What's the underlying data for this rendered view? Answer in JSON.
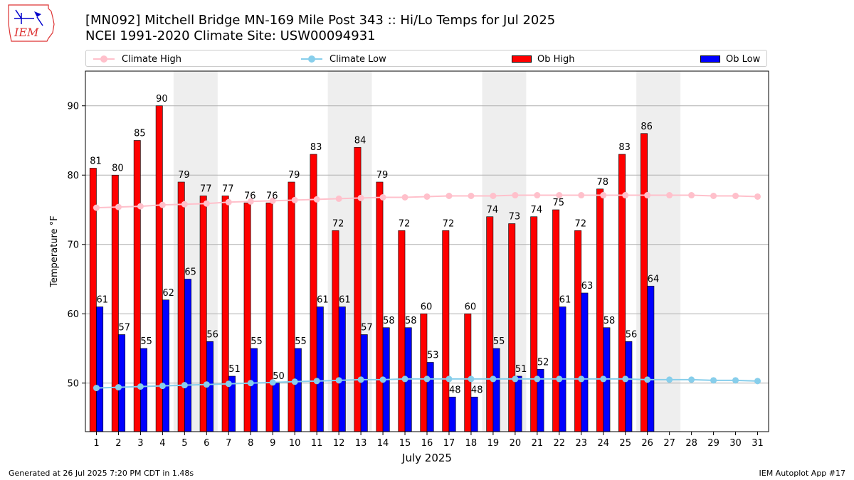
{
  "header": {
    "logo_text": "IEM",
    "title_line1": "[MN092] Mitchell Bridge MN-169 Mile Post 343 :: Hi/Lo Temps for Jul 2025",
    "title_line2": "NCEI 1991-2020 Climate Site: USW00094931"
  },
  "legend": {
    "climate_high": "Climate High",
    "climate_low": "Climate Low",
    "ob_high": "Ob High",
    "ob_low": "Ob Low"
  },
  "footer": {
    "left": "Generated at 26 Jul 2025 7:20 PM CDT in 1.48s",
    "right": "IEM Autoplot App #17"
  },
  "colors": {
    "ob_high": "#ff0000",
    "ob_low": "#0000ff",
    "climate_high": "#ffc0cb",
    "climate_low": "#87ceeb",
    "weekend_band": "#eeeeee",
    "grid": "#b0b0b0"
  },
  "chart_data": {
    "type": "bar",
    "xlabel": "July 2025",
    "ylabel": "Temperature °F",
    "xlim": [
      0.5,
      31.5
    ],
    "ylim": [
      43,
      95
    ],
    "yticks": [
      50,
      60,
      70,
      80,
      90
    ],
    "grid": "horizontal",
    "legend_position": "top",
    "days": [
      1,
      2,
      3,
      4,
      5,
      6,
      7,
      8,
      9,
      10,
      11,
      12,
      13,
      14,
      15,
      16,
      17,
      18,
      19,
      20,
      21,
      22,
      23,
      24,
      25,
      26,
      27,
      28,
      29,
      30,
      31
    ],
    "weekend_bands": [
      [
        5,
        6
      ],
      [
        12,
        13
      ],
      [
        19,
        20
      ],
      [
        26,
        27
      ]
    ],
    "series": [
      {
        "name": "Ob High",
        "kind": "bar",
        "color": "#ff0000",
        "values": [
          81,
          80,
          85,
          90,
          79,
          77,
          77,
          76,
          76,
          79,
          83,
          72,
          84,
          79,
          72,
          60,
          72,
          60,
          74,
          73,
          74,
          75,
          72,
          78,
          83,
          86
        ]
      },
      {
        "name": "Ob Low",
        "kind": "bar",
        "color": "#0000ff",
        "values": [
          61,
          57,
          55,
          62,
          65,
          56,
          51,
          55,
          50,
          55,
          61,
          61,
          57,
          58,
          58,
          53,
          48,
          48,
          55,
          51,
          52,
          61,
          63,
          58,
          56,
          64
        ]
      },
      {
        "name": "Climate High",
        "kind": "line",
        "color": "#ffc0cb",
        "values": [
          75.3,
          75.4,
          75.5,
          75.7,
          75.8,
          75.9,
          76.1,
          76.2,
          76.3,
          76.4,
          76.5,
          76.6,
          76.7,
          76.8,
          76.8,
          76.9,
          77.0,
          77.0,
          77.0,
          77.1,
          77.1,
          77.1,
          77.1,
          77.1,
          77.1,
          77.1,
          77.1,
          77.1,
          77.0,
          77.0,
          76.9
        ]
      },
      {
        "name": "Climate Low",
        "kind": "line",
        "color": "#87ceeb",
        "values": [
          49.3,
          49.4,
          49.5,
          49.6,
          49.7,
          49.8,
          49.9,
          50.0,
          50.1,
          50.2,
          50.3,
          50.4,
          50.5,
          50.5,
          50.6,
          50.6,
          50.6,
          50.6,
          50.6,
          50.6,
          50.6,
          50.6,
          50.6,
          50.6,
          50.6,
          50.5,
          50.5,
          50.5,
          50.4,
          50.4,
          50.3
        ]
      }
    ]
  }
}
